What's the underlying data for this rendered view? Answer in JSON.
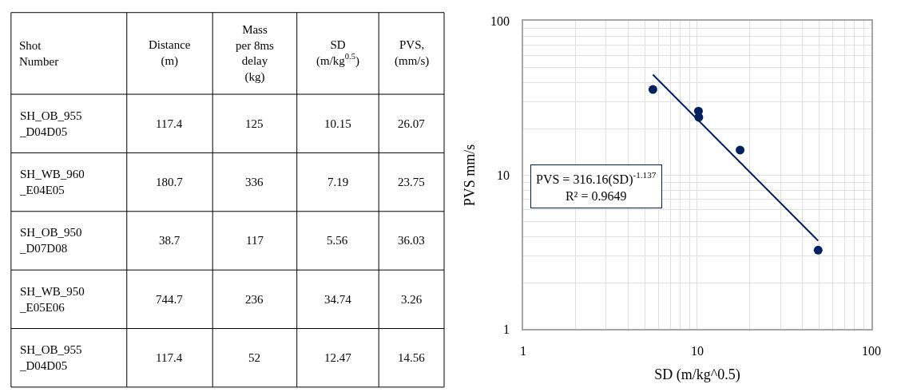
{
  "chart_data": [
    {
      "type": "other",
      "annotations": [
        "Shot\nNumber",
        "Distance\n(m)",
        "Mass\nper 8ms\ndelay\n(kg)",
        "SD\n(m/kg$^{0.5}$)",
        "PVS,\n(mm/s)",
        "SH_OB_955\n_D04D05",
        "117.4",
        "125",
        "10.15",
        "26.07",
        "SH_WB_960\n_E04E05",
        "180.7",
        "336",
        "7.19",
        "23.75",
        "SH_OB_950\n_D07D08",
        "38.7",
        "117",
        "5.56",
        "36.03",
        "SH_WB_950\n_E05E06",
        "744.7",
        "236",
        "34.74",
        "3.26",
        "SH_OB_955\n_D04D05",
        "117.4",
        "52",
        "12.47",
        "14.56"
      ]
    },
    {
      "type": "scatter",
      "xlabel": "SD (m/kg^0.5)",
      "ylabel": "PVS mm/s",
      "log": "xy",
      "xlim": [
        1,
        100
      ],
      "ylim": [
        1,
        100
      ],
      "xticks": [
        1,
        10,
        100
      ],
      "yticks": [
        1,
        10,
        100
      ],
      "grid": true,
      "marker": "circle",
      "annotations": [
        "PVS = 316.16(SD)$^{-1.137}$\nR² = 0.9649"
      ],
      "series": [
        {
          "color": "#002060",
          "x": [
            5.56,
            10.15,
            10.2,
            17.6,
            49.4
          ],
          "values": [
            36.03,
            26.07,
            23.75,
            14.56,
            3.26
          ]
        },
        {
          "type": "line",
          "marker": "none",
          "color": "#002060",
          "x": [
            5.56,
            49.4
          ],
          "values": [
            44.96,
            3.75
          ]
        }
      ]
    }
  ]
}
